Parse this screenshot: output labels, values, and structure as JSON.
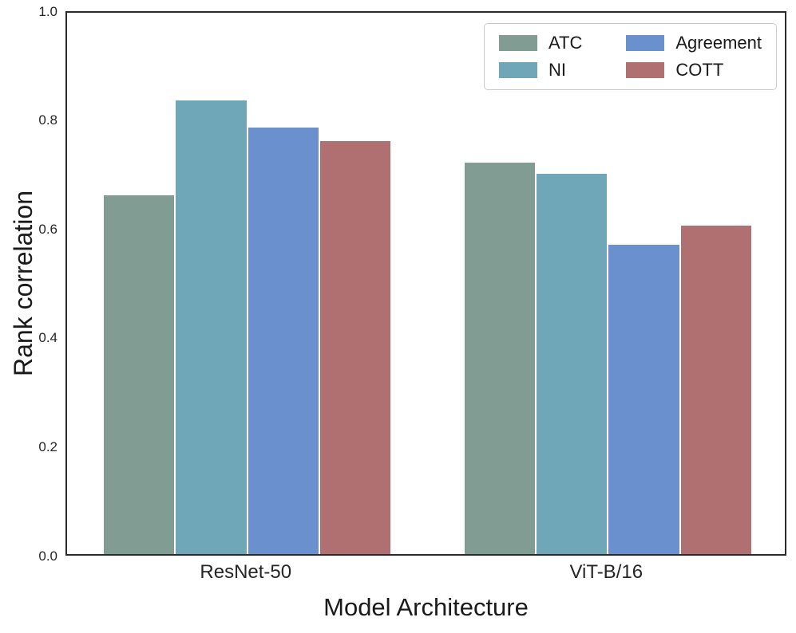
{
  "figure": {
    "background": "#ffffff",
    "spine_color": "#2b2b2b",
    "bar_edge_color": "#ffffff"
  },
  "chart_data": {
    "type": "bar",
    "title": "",
    "xlabel": "Model Architecture",
    "ylabel": "Rank correlation",
    "categories": [
      "ResNet-50",
      "ViT-B/16"
    ],
    "series": [
      {
        "name": "ATC",
        "color": "#819D93",
        "values": [
          0.66,
          0.72
        ]
      },
      {
        "name": "NI",
        "color": "#6FA7B8",
        "values": [
          0.835,
          0.7
        ]
      },
      {
        "name": "Agreement",
        "color": "#6A90CE",
        "values": [
          0.785,
          0.57
        ]
      },
      {
        "name": "COTT",
        "color": "#B06F70",
        "values": [
          0.76,
          0.605
        ]
      }
    ],
    "ylim": [
      0.0,
      1.0
    ],
    "yticks": [
      "0.0",
      "0.2",
      "0.4",
      "0.6",
      "0.8",
      "1.0"
    ],
    "grid": false,
    "legend": {
      "position": "upper right",
      "ncol": 2,
      "entries": [
        "ATC",
        "NI",
        "Agreement",
        "COTT"
      ]
    }
  }
}
